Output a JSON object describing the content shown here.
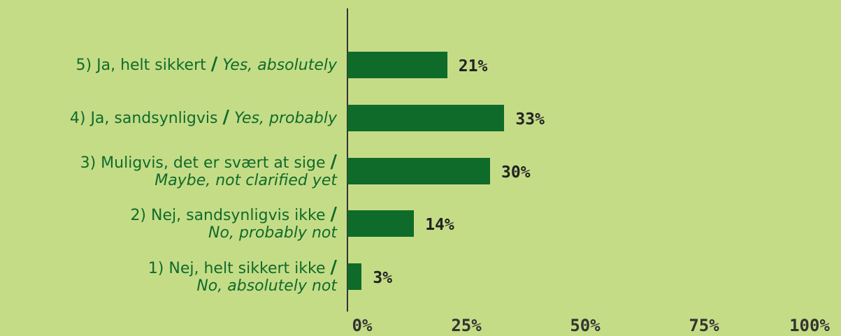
{
  "chart_data": {
    "type": "bar",
    "orientation": "horizontal",
    "categories": [
      {
        "da": "5) Ja, helt sikkert",
        "sep": "/",
        "en": "Yes, absolutely"
      },
      {
        "da": "4) Ja, sandsynligvis",
        "sep": "/",
        "en": "Yes, probably"
      },
      {
        "da": "3) Muligvis, det er svært at sige",
        "sep": "/",
        "en": "Maybe, not clarified yet"
      },
      {
        "da": "2) Nej, sandsynligvis ikke",
        "sep": "/",
        "en": "No, probably not"
      },
      {
        "da": "1) Nej, helt sikkert ikke",
        "sep": "/",
        "en": "No, absolutely not"
      }
    ],
    "values": [
      21,
      33,
      30,
      14,
      3
    ],
    "value_labels": [
      "21%",
      "33%",
      "30%",
      "14%",
      "3%"
    ],
    "xlim": [
      0,
      100
    ],
    "x_ticks": [
      0,
      25,
      50,
      75,
      100
    ],
    "x_tick_labels": [
      "0%",
      "25%",
      "50%",
      "75%",
      "100%"
    ],
    "grid": false,
    "legend": "none",
    "colors": {
      "bar": "#0f6b2a",
      "background": "#c5dc87",
      "label": "#0f6b2a",
      "value": "#222222"
    }
  }
}
